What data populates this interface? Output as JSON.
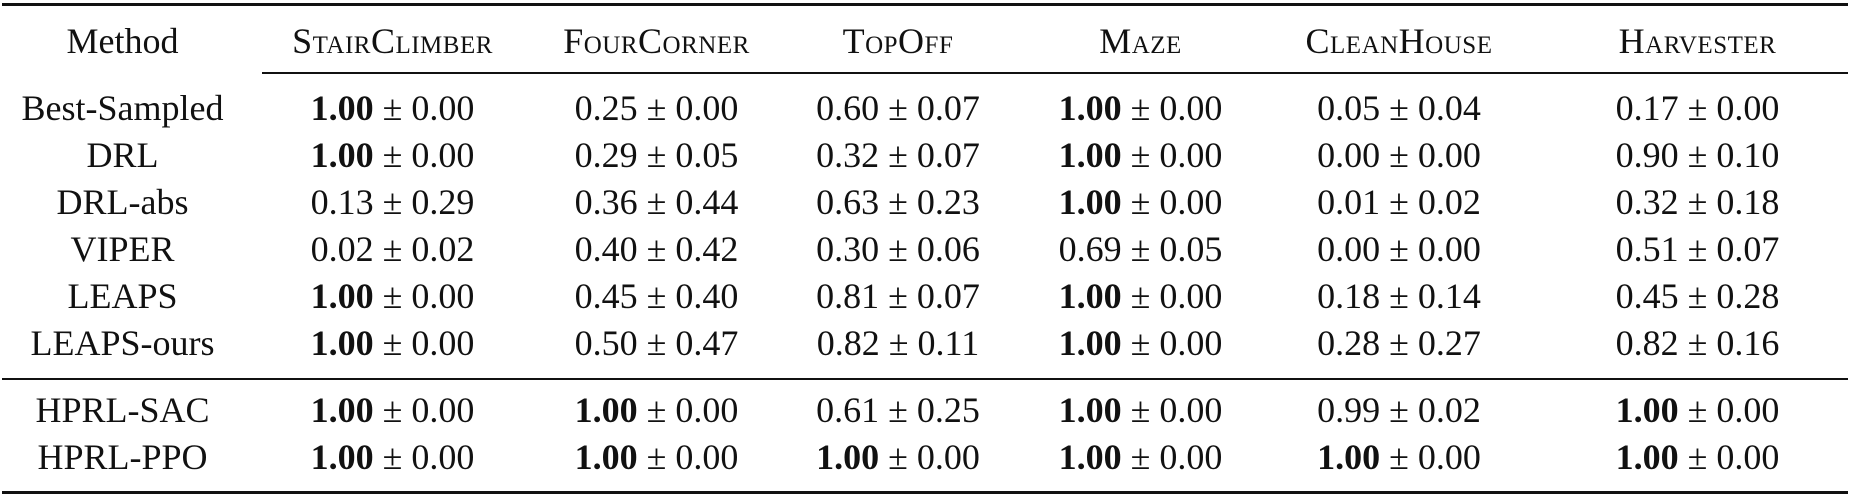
{
  "table": {
    "columns": [
      "Method",
      "StairClimber",
      "FourCorner",
      "TopOff",
      "Maze",
      "CleanHouse",
      "Harvester"
    ],
    "pm_symbol": "±",
    "groups": [
      {
        "rows": [
          {
            "method": "Best-Sampled",
            "cells": [
              {
                "mean": "1.00",
                "std": "0.00",
                "bold": true
              },
              {
                "mean": "0.25",
                "std": "0.00",
                "bold": false
              },
              {
                "mean": "0.60",
                "std": "0.07",
                "bold": false
              },
              {
                "mean": "1.00",
                "std": "0.00",
                "bold": true
              },
              {
                "mean": "0.05",
                "std": "0.04",
                "bold": false
              },
              {
                "mean": "0.17",
                "std": "0.00",
                "bold": false
              }
            ]
          },
          {
            "method": "DRL",
            "cells": [
              {
                "mean": "1.00",
                "std": "0.00",
                "bold": true
              },
              {
                "mean": "0.29",
                "std": "0.05",
                "bold": false
              },
              {
                "mean": "0.32",
                "std": "0.07",
                "bold": false
              },
              {
                "mean": "1.00",
                "std": "0.00",
                "bold": true
              },
              {
                "mean": "0.00",
                "std": "0.00",
                "bold": false
              },
              {
                "mean": "0.90",
                "std": "0.10",
                "bold": false
              }
            ]
          },
          {
            "method": "DRL-abs",
            "cells": [
              {
                "mean": "0.13",
                "std": "0.29",
                "bold": false
              },
              {
                "mean": "0.36",
                "std": "0.44",
                "bold": false
              },
              {
                "mean": "0.63",
                "std": "0.23",
                "bold": false
              },
              {
                "mean": "1.00",
                "std": "0.00",
                "bold": true
              },
              {
                "mean": "0.01",
                "std": "0.02",
                "bold": false
              },
              {
                "mean": "0.32",
                "std": "0.18",
                "bold": false
              }
            ]
          },
          {
            "method": "VIPER",
            "cells": [
              {
                "mean": "0.02",
                "std": "0.02",
                "bold": false
              },
              {
                "mean": "0.40",
                "std": "0.42",
                "bold": false
              },
              {
                "mean": "0.30",
                "std": "0.06",
                "bold": false
              },
              {
                "mean": "0.69",
                "std": "0.05",
                "bold": false
              },
              {
                "mean": "0.00",
                "std": "0.00",
                "bold": false
              },
              {
                "mean": "0.51",
                "std": "0.07",
                "bold": false
              }
            ]
          },
          {
            "method": "LEAPS",
            "cells": [
              {
                "mean": "1.00",
                "std": "0.00",
                "bold": true
              },
              {
                "mean": "0.45",
                "std": "0.40",
                "bold": false
              },
              {
                "mean": "0.81",
                "std": "0.07",
                "bold": false
              },
              {
                "mean": "1.00",
                "std": "0.00",
                "bold": true
              },
              {
                "mean": "0.18",
                "std": "0.14",
                "bold": false
              },
              {
                "mean": "0.45",
                "std": "0.28",
                "bold": false
              }
            ]
          },
          {
            "method": "LEAPS-ours",
            "cells": [
              {
                "mean": "1.00",
                "std": "0.00",
                "bold": true
              },
              {
                "mean": "0.50",
                "std": "0.47",
                "bold": false
              },
              {
                "mean": "0.82",
                "std": "0.11",
                "bold": false
              },
              {
                "mean": "1.00",
                "std": "0.00",
                "bold": true
              },
              {
                "mean": "0.28",
                "std": "0.27",
                "bold": false
              },
              {
                "mean": "0.82",
                "std": "0.16",
                "bold": false
              }
            ]
          }
        ]
      },
      {
        "rows": [
          {
            "method": "HPRL-SAC",
            "cells": [
              {
                "mean": "1.00",
                "std": "0.00",
                "bold": true
              },
              {
                "mean": "1.00",
                "std": "0.00",
                "bold": true
              },
              {
                "mean": "0.61",
                "std": "0.25",
                "bold": false
              },
              {
                "mean": "1.00",
                "std": "0.00",
                "bold": true
              },
              {
                "mean": "0.99",
                "std": "0.02",
                "bold": false
              },
              {
                "mean": "1.00",
                "std": "0.00",
                "bold": true
              }
            ]
          },
          {
            "method": "HPRL-PPO",
            "cells": [
              {
                "mean": "1.00",
                "std": "0.00",
                "bold": true
              },
              {
                "mean": "1.00",
                "std": "0.00",
                "bold": true
              },
              {
                "mean": "1.00",
                "std": "0.00",
                "bold": true
              },
              {
                "mean": "1.00",
                "std": "0.00",
                "bold": true
              },
              {
                "mean": "1.00",
                "std": "0.00",
                "bold": true
              },
              {
                "mean": "1.00",
                "std": "0.00",
                "bold": true
              }
            ]
          }
        ]
      }
    ]
  }
}
